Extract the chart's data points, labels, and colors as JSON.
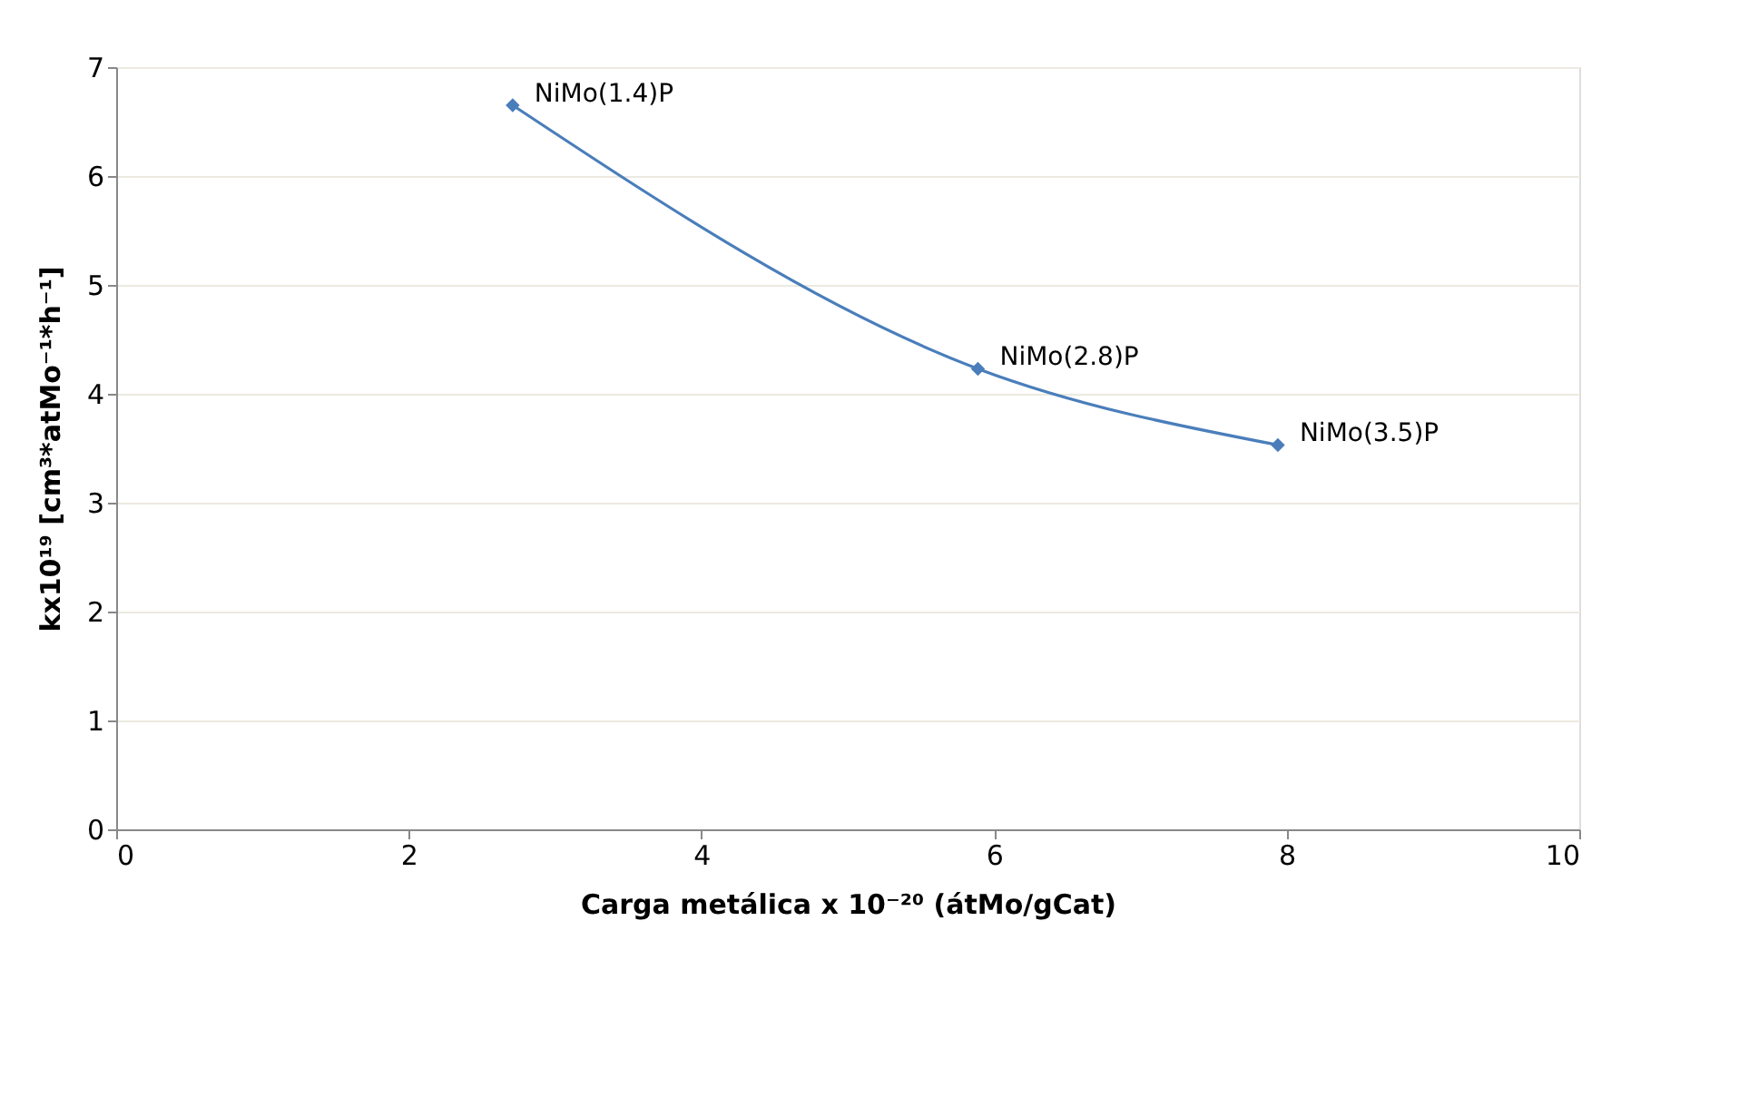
{
  "chart_data": {
    "type": "line",
    "x": [
      2.71,
      5.89,
      7.94
    ],
    "series": [
      {
        "color": "#4a7ebb",
        "values": [
          6.65,
          4.23,
          3.53
        ]
      }
    ],
    "xlabel": "Carga metálica x 10⁻²⁰ (átMo/gCat)",
    "ylabel": "kx10¹⁹ [cm³*atMo⁻¹*h⁻¹]",
    "annotations": [
      {
        "text": "NiMo(1.4)P",
        "x": 2.71,
        "y": 6.65
      },
      {
        "text": "NiMo(2.8)P",
        "x": 5.89,
        "y": 4.23
      },
      {
        "text": "NiMo(3.5)P",
        "x": 7.94,
        "y": 3.53
      }
    ],
    "xlim": [
      0,
      10
    ],
    "xticks": [
      0,
      2,
      4,
      6,
      8,
      10
    ],
    "ylim": [
      0,
      7
    ],
    "yticks": [
      0,
      1,
      2,
      3,
      4,
      5,
      6,
      7
    ],
    "grid": "y",
    "marker": "diamond",
    "line_style": "solid"
  }
}
